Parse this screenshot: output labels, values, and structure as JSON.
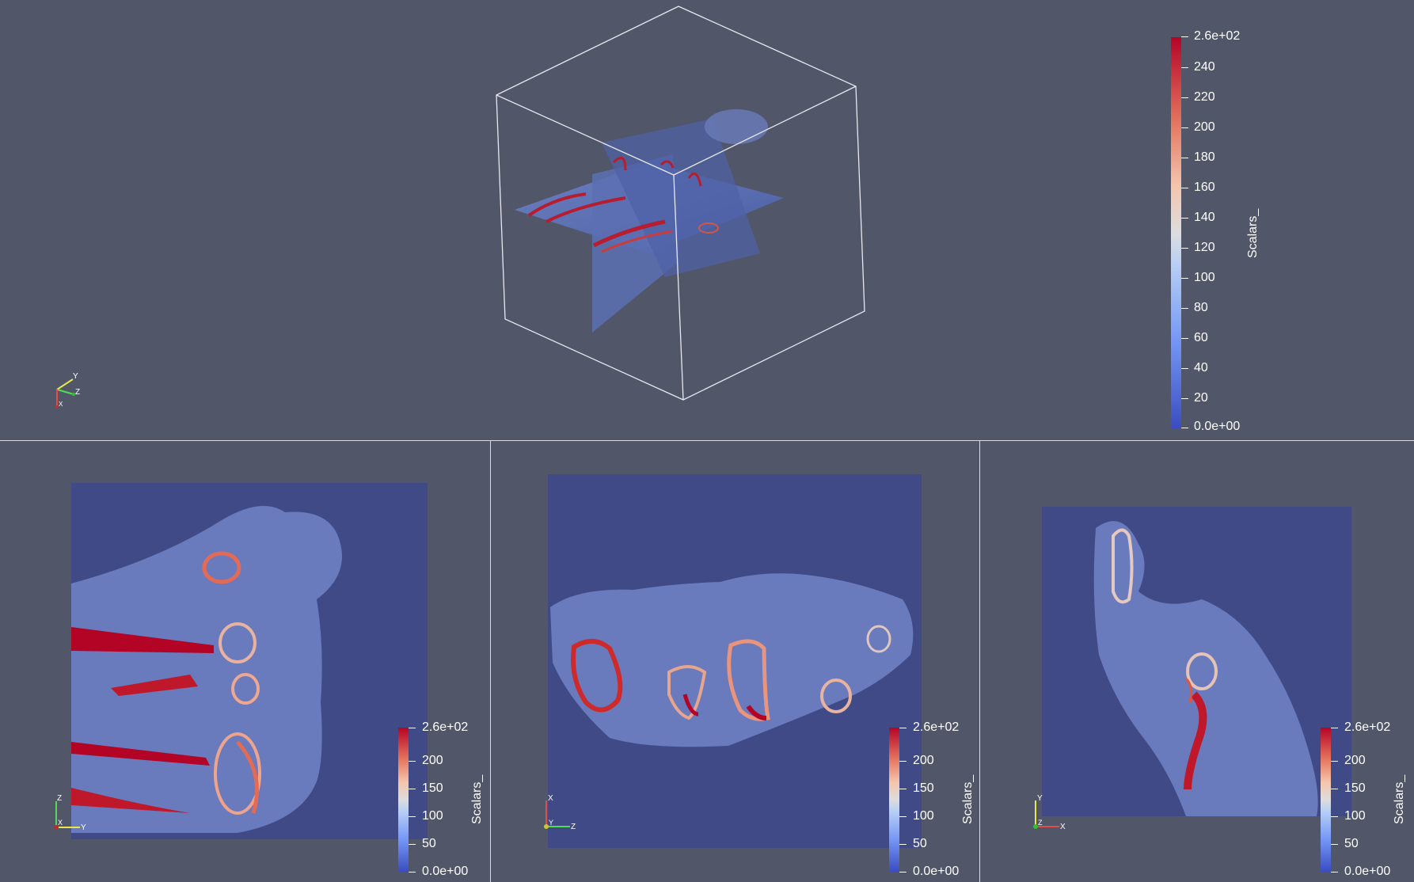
{
  "colorbar_main": {
    "title": "Scalars_",
    "max_label": "2.6e+02",
    "min_label": "0.0e+00",
    "ticks": [
      "240",
      "220",
      "200",
      "180",
      "160",
      "140",
      "120",
      "100",
      "80",
      "60",
      "40",
      "20"
    ]
  },
  "colorbar_small": {
    "title": "Scalars_",
    "max_label": "2.6e+02",
    "min_label": "0.0e+00",
    "ticks": [
      "200",
      "150",
      "100",
      "50"
    ]
  },
  "orientation_3d": {
    "a": "Y",
    "b": "Z",
    "c": "X"
  },
  "orientation_axial": {
    "up": "Z",
    "center": "X",
    "right": "Y"
  },
  "orientation_coronal": {
    "up": "X",
    "center": "Y",
    "right": "Z"
  },
  "orientation_sagittal": {
    "up": "Y",
    "center": "Z",
    "right": "X"
  },
  "colors": {
    "background": "#525669",
    "slice_bg": "#3f4a87",
    "low": "#3b4cc0",
    "mid": "#dddddd",
    "high": "#b40426"
  }
}
